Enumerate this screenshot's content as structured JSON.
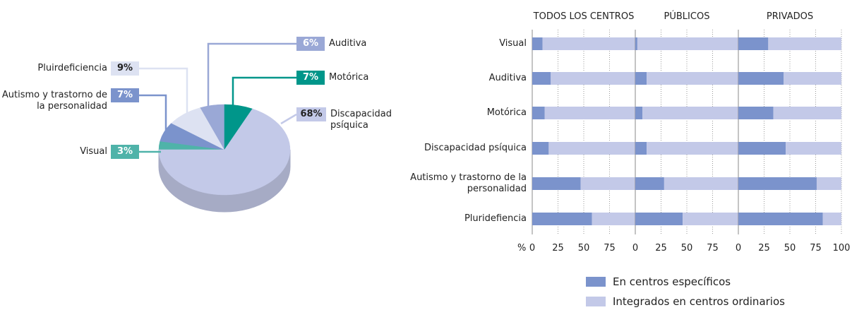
{
  "chart_data": [
    {
      "type": "pie",
      "categories": [
        "Visual",
        "Autismo y trastorno de la personalidad",
        "Pluirdeficiencia",
        "Auditiva",
        "Motórica",
        "Discapacidad psíquica"
      ],
      "values": [
        3,
        7,
        9,
        6,
        7,
        68
      ],
      "value_labels": [
        "3%",
        "7%",
        "9%",
        "6%",
        "7%",
        "68%"
      ],
      "colors": [
        "#4fb3a9",
        "#7b93cc",
        "#dde2f2",
        "#9aa8d6",
        "#00968a",
        "#c3c9e8"
      ]
    },
    {
      "type": "bar",
      "orientation": "horizontal",
      "stacked": true,
      "categories": [
        "Visual",
        "Auditiva",
        "Motórica",
        "Discapacidad psíquica",
        "Autismo y trastorno de la personalidad",
        "Pluridefiencia"
      ],
      "xlabel": "%",
      "series": [
        {
          "name": "En centros específicos",
          "color": "#7b93cc"
        },
        {
          "name": "Integrados en centros ordinarios",
          "color": "#c3c9e8"
        }
      ],
      "grid": true,
      "panels": [
        {
          "title": "TODOS LOS CENTROS",
          "xlim": [
            0,
            100
          ],
          "xticks": [
            0,
            25,
            50,
            75
          ],
          "values": [
            [
              10,
              18,
              12,
              16,
              47,
              58
            ],
            [
              90,
              82,
              88,
              84,
              53,
              42
            ]
          ]
        },
        {
          "title": "PÚBLICOS",
          "xlim": [
            0,
            100
          ],
          "xticks": [
            0,
            25,
            50,
            75
          ],
          "values": [
            [
              2,
              11,
              7,
              11,
              28,
              46
            ],
            [
              98,
              89,
              93,
              89,
              72,
              54
            ]
          ]
        },
        {
          "title": "PRIVADOS",
          "xlim": [
            0,
            100
          ],
          "xticks": [
            0,
            25,
            50,
            75,
            100
          ],
          "values": [
            [
              29,
              44,
              34,
              46,
              76,
              82
            ],
            [
              71,
              56,
              66,
              54,
              24,
              18
            ]
          ]
        }
      ]
    }
  ]
}
